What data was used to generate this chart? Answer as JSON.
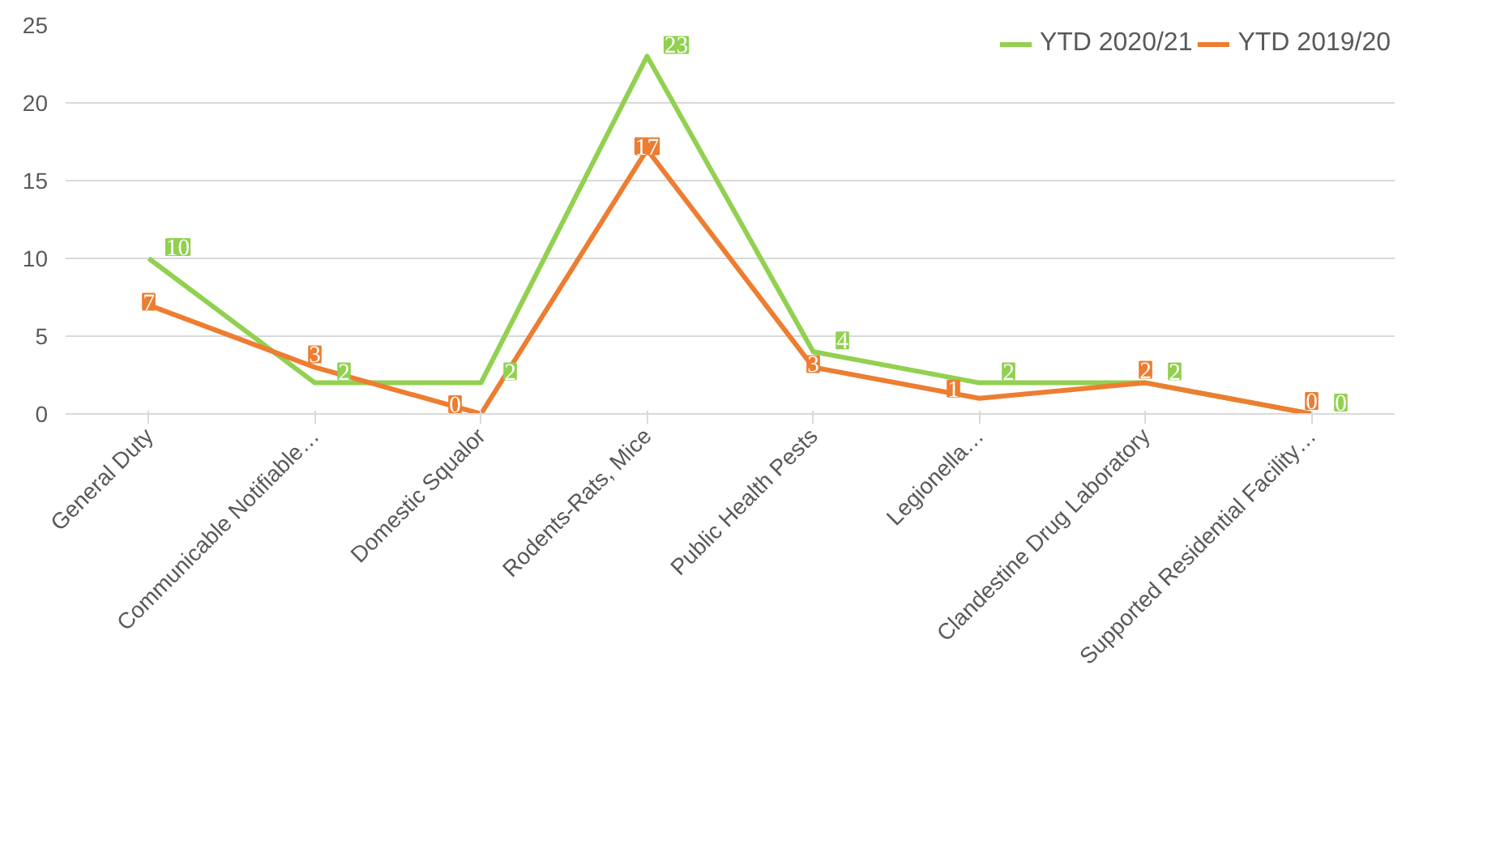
{
  "chart_data": {
    "type": "line",
    "categories": [
      "General Duty",
      "Communicable Notifiable…",
      "Domestic Squalor",
      "Rodents-Rats, Mice",
      "Public Health Pests",
      "Legionella…",
      "Clandestine Drug Laboratory",
      "Supported Residential Facility…"
    ],
    "series": [
      {
        "name": "YTD 2020/21",
        "color": "#92d050",
        "values": [
          10,
          2,
          2,
          23,
          4,
          2,
          2,
          0
        ]
      },
      {
        "name": "YTD 2019/20",
        "color": "#ed7d31",
        "values": [
          7,
          3,
          0,
          17,
          3,
          1,
          2,
          0
        ]
      }
    ],
    "ylim": [
      0,
      25
    ],
    "yticks": [
      0,
      5,
      10,
      15,
      20,
      25
    ],
    "grid": "y",
    "legend": "top right",
    "data_labels": true,
    "line_style": "solid"
  }
}
